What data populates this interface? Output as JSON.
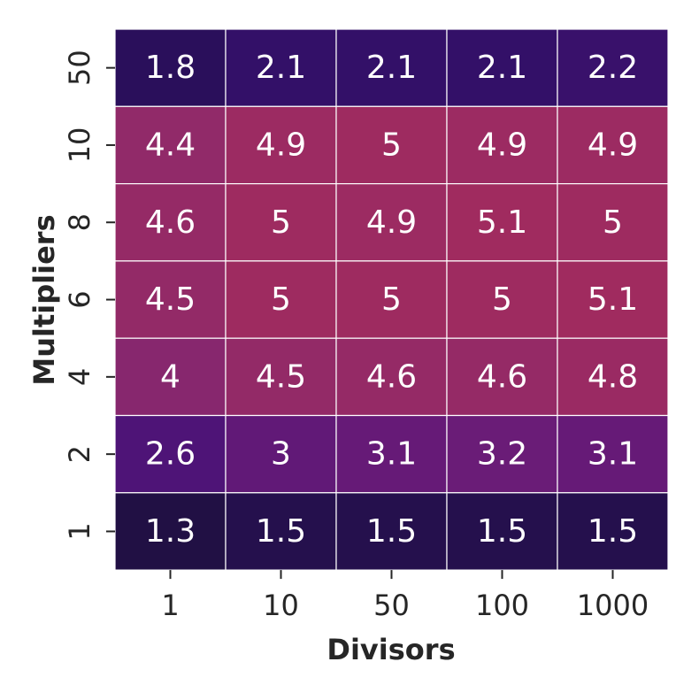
{
  "chart_data": {
    "type": "heatmap",
    "title": "",
    "xlabel": "Divisors",
    "ylabel": "Multipliers",
    "x_categories": [
      "1",
      "10",
      "50",
      "100",
      "1000"
    ],
    "y_categories": [
      "50",
      "10",
      "8",
      "6",
      "4",
      "2",
      "1"
    ],
    "values": [
      [
        1.8,
        2.1,
        2.1,
        2.1,
        2.2
      ],
      [
        4.4,
        4.9,
        5,
        4.9,
        4.9
      ],
      [
        4.6,
        5,
        4.9,
        5.1,
        5
      ],
      [
        4.5,
        5,
        5,
        5,
        5.1
      ],
      [
        4,
        4.5,
        4.6,
        4.6,
        4.8
      ],
      [
        2.6,
        3,
        3.1,
        3.2,
        3.1
      ],
      [
        1.3,
        1.5,
        1.5,
        1.5,
        1.5
      ]
    ],
    "value_labels": [
      [
        "1.8",
        "2.1",
        "2.1",
        "2.1",
        "2.2"
      ],
      [
        "4.4",
        "4.9",
        "5",
        "4.9",
        "4.9"
      ],
      [
        "4.6",
        "5",
        "4.9",
        "5.1",
        "5"
      ],
      [
        "4.5",
        "5",
        "5",
        "5",
        "5.1"
      ],
      [
        "4",
        "4.5",
        "4.6",
        "4.6",
        "4.8"
      ],
      [
        "2.6",
        "3",
        "3.1",
        "3.2",
        "3.1"
      ],
      [
        "1.3",
        "1.5",
        "1.5",
        "1.5",
        "1.5"
      ]
    ],
    "colormap": "magma",
    "color_range": [
      1.3,
      5.1
    ],
    "colorbar": false,
    "cell_border_color": "#ffffff"
  }
}
